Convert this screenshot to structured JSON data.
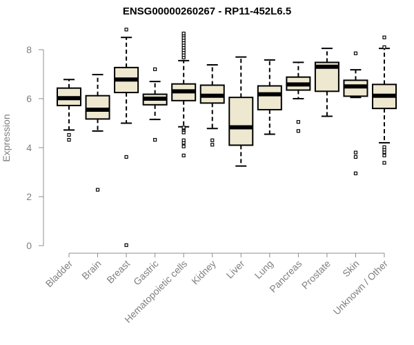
{
  "chart_data": {
    "type": "box",
    "title": "ENSG00000260267 - RP11-452L6.5",
    "xlabel": "",
    "ylabel": "Expression",
    "ylim": [
      0,
      8.9
    ],
    "yticks": [
      0,
      2,
      4,
      6,
      8
    ],
    "grid": false,
    "colors": {
      "box_fill": "#EEE8D0",
      "box_stroke": "#000000",
      "median": "#000000",
      "axis": "#8c8c8c",
      "tick_label": "#7f7f7f",
      "title": "#000000"
    },
    "categories": [
      "Bladder",
      "Brain",
      "Breast",
      "Gastric",
      "Hematopoietic cells",
      "Kidney",
      "Liver",
      "Lung",
      "Pancreas",
      "Prostate",
      "Skin",
      "Unknown / Other"
    ],
    "boxes": [
      {
        "category": "Bladder",
        "whisker_low": 4.72,
        "q1": 5.72,
        "median": 6.02,
        "q3": 6.43,
        "whisker_high": 6.78,
        "outliers": [
          4.32,
          4.52
        ]
      },
      {
        "category": "Brain",
        "whisker_low": 4.68,
        "q1": 5.17,
        "median": 5.55,
        "q3": 6.12,
        "whisker_high": 6.98,
        "outliers": [
          2.28
        ]
      },
      {
        "category": "Breast",
        "whisker_low": 5.0,
        "q1": 6.25,
        "median": 6.78,
        "q3": 7.27,
        "whisker_high": 8.5,
        "outliers": [
          0.02,
          3.62,
          8.82
        ]
      },
      {
        "category": "Gastric",
        "whisker_low": 5.15,
        "q1": 5.75,
        "median": 6.0,
        "q3": 6.18,
        "whisker_high": 6.7,
        "outliers": [
          4.32,
          7.2
        ]
      },
      {
        "category": "Hematopoietic cells",
        "whisker_low": 4.85,
        "q1": 5.92,
        "median": 6.3,
        "q3": 6.6,
        "whisker_high": 7.55,
        "outliers": [
          3.68,
          4.05,
          4.2,
          4.3,
          4.62,
          4.72,
          4.78,
          4.82,
          7.68,
          7.78,
          7.88,
          7.98,
          8.08,
          8.18,
          8.28,
          8.38,
          8.48,
          8.58,
          8.66
        ]
      },
      {
        "category": "Kidney",
        "whisker_low": 4.78,
        "q1": 5.82,
        "median": 6.12,
        "q3": 6.55,
        "whisker_high": 7.38,
        "outliers": [
          4.12,
          4.3
        ]
      },
      {
        "category": "Liver",
        "whisker_low": 3.25,
        "q1": 4.1,
        "median": 4.83,
        "q3": 6.05,
        "whisker_high": 7.7,
        "outliers": []
      },
      {
        "category": "Lung",
        "whisker_low": 4.55,
        "q1": 5.55,
        "median": 6.18,
        "q3": 6.52,
        "whisker_high": 7.58,
        "outliers": []
      },
      {
        "category": "Pancreas",
        "whisker_low": 6.0,
        "q1": 6.35,
        "median": 6.58,
        "q3": 6.88,
        "whisker_high": 7.48,
        "outliers": [
          4.68,
          5.05
        ]
      },
      {
        "category": "Prostate",
        "whisker_low": 5.28,
        "q1": 6.3,
        "median": 7.3,
        "q3": 7.48,
        "whisker_high": 8.05,
        "outliers": []
      },
      {
        "category": "Skin",
        "whisker_low": 6.05,
        "q1": 6.1,
        "median": 6.5,
        "q3": 6.75,
        "whisker_high": 7.18,
        "outliers": [
          2.95,
          3.62,
          3.8,
          7.85
        ]
      },
      {
        "category": "Unknown / Other",
        "whisker_low": 4.2,
        "q1": 5.6,
        "median": 6.12,
        "q3": 6.58,
        "whisker_high": 8.05,
        "outliers": [
          3.38,
          3.68,
          3.82,
          3.92,
          4.02,
          8.1,
          8.5
        ]
      }
    ]
  }
}
